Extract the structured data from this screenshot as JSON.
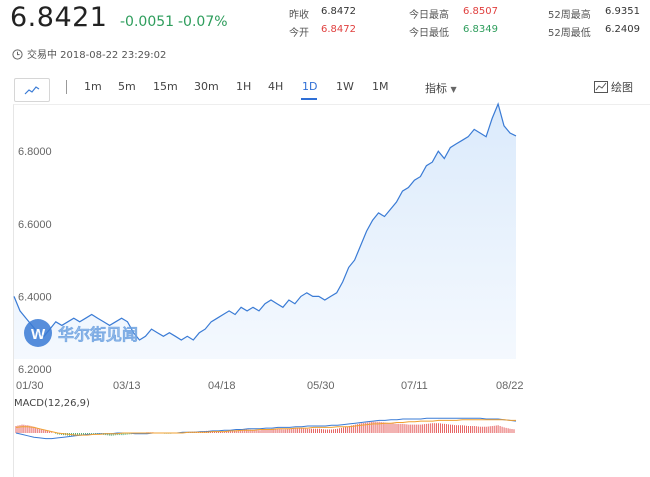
{
  "header": {
    "price": "6.8421",
    "change": "-0.0051",
    "change_pct": "-0.07%",
    "stats": {
      "prev_close_label": "昨收",
      "prev_close": "6.8472",
      "open_label": "今开",
      "open": "6.8472",
      "day_high_label": "今日最高",
      "day_high": "6.8507",
      "day_low_label": "今日最低",
      "day_low": "6.8349",
      "wk52_high_label": "52周最高",
      "wk52_high": "6.9351",
      "wk52_low_label": "52周最低",
      "wk52_low": "6.2409"
    },
    "status_time": "交易中 2018-08-22 23:29:02"
  },
  "toolbar": {
    "timeframes": [
      "1m",
      "5m",
      "15m",
      "30m",
      "1H",
      "4H",
      "1D",
      "1W",
      "1M"
    ],
    "active_timeframe": "1D",
    "indicators_label": "指标",
    "draw_label": "绘图"
  },
  "watermark": {
    "text": "华尔街见闻"
  },
  "colors": {
    "up": "#e0403f",
    "down": "#2e9d5c",
    "accent": "#2f6fd6",
    "line": "#3a7bd5",
    "area": "#eaf3fd"
  },
  "chart_data": {
    "type": "area",
    "title": "",
    "xlabel": "",
    "ylabel": "",
    "x_ticks": [
      "01/30",
      "03/13",
      "04/18",
      "05/30",
      "07/11",
      "08/22"
    ],
    "y_ticks": [
      "6.2000",
      "6.4000",
      "6.6000",
      "6.8000"
    ],
    "ylim": [
      6.2,
      6.93
    ],
    "series": [
      {
        "values": [
          6.4,
          6.36,
          6.34,
          6.32,
          6.3,
          6.29,
          6.31,
          6.33,
          6.32,
          6.33,
          6.34,
          6.33,
          6.34,
          6.35,
          6.34,
          6.33,
          6.32,
          6.33,
          6.34,
          6.33,
          6.3,
          6.28,
          6.29,
          6.31,
          6.3,
          6.29,
          6.3,
          6.29,
          6.28,
          6.29,
          6.28,
          6.3,
          6.31,
          6.33,
          6.34,
          6.35,
          6.36,
          6.35,
          6.37,
          6.36,
          6.37,
          6.36,
          6.38,
          6.39,
          6.38,
          6.37,
          6.39,
          6.38,
          6.4,
          6.41,
          6.4,
          6.4,
          6.39,
          6.4,
          6.41,
          6.44,
          6.48,
          6.5,
          6.54,
          6.58,
          6.61,
          6.63,
          6.62,
          6.64,
          6.66,
          6.69,
          6.7,
          6.72,
          6.73,
          6.76,
          6.77,
          6.8,
          6.78,
          6.81,
          6.82,
          6.83,
          6.84,
          6.86,
          6.85,
          6.84,
          6.89,
          6.93,
          6.87,
          6.85,
          6.842
        ]
      }
    ],
    "macd": {
      "label": "MACD(12,26,9)",
      "hist": [
        0.01,
        0.012,
        0.011,
        0.009,
        0.006,
        0.004,
        0.001,
        -0.002,
        -0.003,
        -0.004,
        -0.004,
        -0.003,
        -0.002,
        -0.001,
        -0.002,
        -0.003,
        -0.004,
        -0.003,
        -0.003,
        -0.002,
        -0.001,
        0.0,
        0.001,
        0.001,
        0.0,
        -0.001,
        -0.001,
        0.0,
        0.001,
        0.001,
        0.002,
        0.002,
        0.003,
        0.003,
        0.002,
        0.002,
        0.003,
        0.004,
        0.005,
        0.005,
        0.004,
        0.004,
        0.005,
        0.006,
        0.006,
        0.005,
        0.006,
        0.007,
        0.007,
        0.006,
        0.006,
        0.006,
        0.005,
        0.005,
        0.006,
        0.008,
        0.01,
        0.012,
        0.014,
        0.015,
        0.016,
        0.016,
        0.015,
        0.014,
        0.013,
        0.013,
        0.012,
        0.012,
        0.012,
        0.013,
        0.014,
        0.014,
        0.013,
        0.012,
        0.011,
        0.011,
        0.01,
        0.01,
        0.009,
        0.009,
        0.01,
        0.011,
        0.008,
        0.006,
        0.005
      ],
      "dif": [
        0.0,
        -0.002,
        -0.004,
        -0.006,
        -0.007,
        -0.008,
        -0.008,
        -0.007,
        -0.006,
        -0.005,
        -0.004,
        -0.003,
        -0.002,
        -0.002,
        -0.001,
        -0.001,
        -0.001,
        0.0,
        0.0,
        0.0,
        -0.001,
        -0.001,
        -0.001,
        0.0,
        0.0,
        0.0,
        0.0,
        0.0,
        0.001,
        0.001,
        0.001,
        0.002,
        0.002,
        0.003,
        0.003,
        0.004,
        0.004,
        0.005,
        0.005,
        0.006,
        0.006,
        0.006,
        0.007,
        0.007,
        0.008,
        0.008,
        0.008,
        0.009,
        0.009,
        0.01,
        0.01,
        0.01,
        0.01,
        0.011,
        0.011,
        0.012,
        0.013,
        0.014,
        0.015,
        0.016,
        0.017,
        0.018,
        0.018,
        0.019,
        0.019,
        0.02,
        0.02,
        0.02,
        0.02,
        0.021,
        0.021,
        0.021,
        0.021,
        0.021,
        0.021,
        0.021,
        0.021,
        0.021,
        0.021,
        0.02,
        0.02,
        0.02,
        0.019,
        0.018,
        0.017
      ],
      "dea": [
        0.008,
        0.009,
        0.009,
        0.008,
        0.006,
        0.004,
        0.002,
        0.0,
        -0.001,
        -0.002,
        -0.003,
        -0.003,
        -0.003,
        -0.002,
        -0.002,
        -0.001,
        -0.001,
        -0.001,
        0.0,
        0.0,
        0.0,
        0.0,
        0.0,
        0.0,
        0.0,
        0.0,
        0.0,
        0.0,
        0.0,
        0.001,
        0.001,
        0.001,
        0.001,
        0.002,
        0.002,
        0.002,
        0.003,
        0.003,
        0.004,
        0.004,
        0.004,
        0.005,
        0.005,
        0.005,
        0.006,
        0.006,
        0.006,
        0.007,
        0.007,
        0.007,
        0.008,
        0.008,
        0.008,
        0.008,
        0.009,
        0.009,
        0.009,
        0.01,
        0.011,
        0.012,
        0.013,
        0.013,
        0.014,
        0.014,
        0.015,
        0.015,
        0.016,
        0.016,
        0.017,
        0.017,
        0.017,
        0.018,
        0.018,
        0.018,
        0.018,
        0.019,
        0.019,
        0.019,
        0.019,
        0.019,
        0.019,
        0.019,
        0.019,
        0.018,
        0.018
      ]
    }
  }
}
